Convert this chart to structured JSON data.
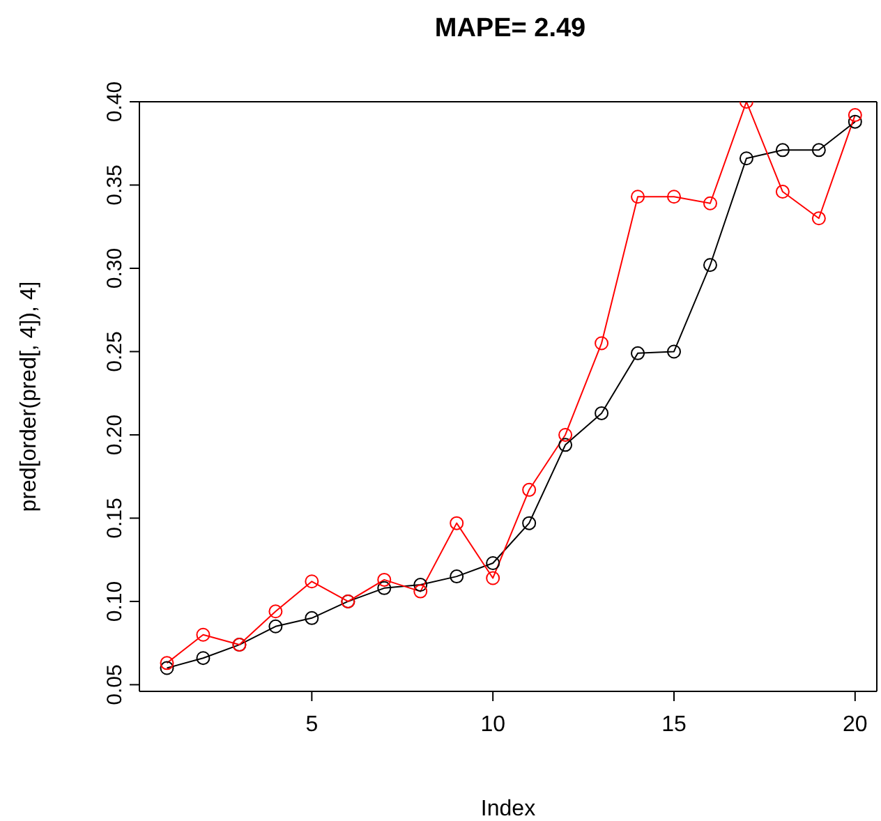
{
  "chart_data": {
    "type": "line",
    "title": "MAPE= 2.49",
    "xlabel": "Index",
    "ylabel": "pred[order(pred[, 4]), 4]",
    "x": [
      1,
      2,
      3,
      4,
      5,
      6,
      7,
      8,
      9,
      10,
      11,
      12,
      13,
      14,
      15,
      16,
      17,
      18,
      19,
      20
    ],
    "series": [
      {
        "color": "#000000",
        "values": [
          0.06,
          0.066,
          0.074,
          0.085,
          0.09,
          0.1,
          0.108,
          0.11,
          0.115,
          0.123,
          0.147,
          0.194,
          0.213,
          0.249,
          0.25,
          0.302,
          0.366,
          0.371,
          0.371,
          0.388
        ]
      },
      {
        "color": "#ff0000",
        "values": [
          0.063,
          0.08,
          0.074,
          0.094,
          0.112,
          0.1,
          0.113,
          0.106,
          0.147,
          0.114,
          0.167,
          0.2,
          0.255,
          0.343,
          0.343,
          0.339,
          0.4,
          0.346,
          0.33,
          0.392
        ]
      }
    ],
    "xlim": [
      0.24,
      20.6
    ],
    "xticks": [
      5,
      10,
      15,
      20
    ],
    "ylim": [
      0.046,
      0.4
    ],
    "yticks": [
      {
        "value": 0.05,
        "label": "0.05"
      },
      {
        "value": 0.1,
        "label": "0.10"
      },
      {
        "value": 0.15,
        "label": "0.15"
      },
      {
        "value": 0.2,
        "label": "0.20"
      },
      {
        "value": 0.25,
        "label": "0.25"
      },
      {
        "value": 0.3,
        "label": "0.30"
      },
      {
        "value": 0.35,
        "label": "0.35"
      },
      {
        "value": 0.4,
        "label": "0.40"
      }
    ],
    "grid": false,
    "legend": false,
    "marker": "circle",
    "line_style": "solid"
  }
}
